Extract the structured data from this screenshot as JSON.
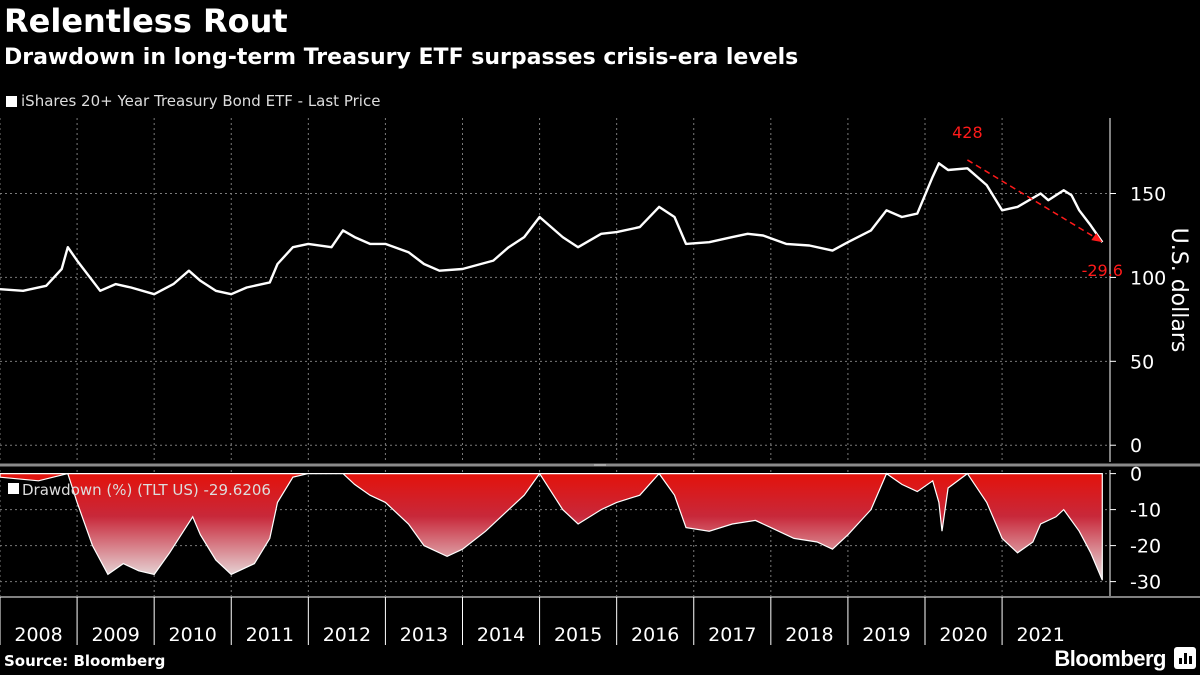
{
  "title": "Relentless Rout",
  "subtitle": "Drawdown in long-term Treasury ETF surpasses crisis-era levels",
  "source": "Source: Bloomberg",
  "brand": "Bloomberg",
  "colors": {
    "background": "#000000",
    "price_line": "#ffffff",
    "drawdown": "#e3120b",
    "annotation": "#ff1a1a",
    "grid": "#7a7a7a"
  },
  "chart_data": [
    {
      "type": "line",
      "legend": "iShares 20+ Year Treasury Bond ETF - Last Price",
      "ylabel": "U.S. dollars",
      "ylim": [
        -10,
        195
      ],
      "yticks": [
        0,
        50,
        100,
        150
      ],
      "grid": true,
      "legend_placement": "top-left",
      "axis_side": "right",
      "series": [
        {
          "name": "iShares 20+ Year Treasury Bond ETF - Last Price",
          "x": [
            2008.0,
            2008.3,
            2008.6,
            2008.8,
            2008.88,
            2009.0,
            2009.3,
            2009.5,
            2009.7,
            2010.0,
            2010.25,
            2010.45,
            2010.6,
            2010.8,
            2011.0,
            2011.2,
            2011.5,
            2011.6,
            2011.8,
            2012.0,
            2012.3,
            2012.45,
            2012.6,
            2012.8,
            2013.0,
            2013.3,
            2013.5,
            2013.7,
            2014.0,
            2014.4,
            2014.6,
            2014.8,
            2015.0,
            2015.3,
            2015.5,
            2015.8,
            2016.0,
            2016.3,
            2016.55,
            2016.75,
            2016.9,
            2017.2,
            2017.5,
            2017.7,
            2017.9,
            2018.2,
            2018.5,
            2018.8,
            2019.0,
            2019.3,
            2019.5,
            2019.7,
            2019.9,
            2020.1,
            2020.18,
            2020.3,
            2020.55,
            2020.8,
            2021.0,
            2021.2,
            2021.5,
            2021.6,
            2021.8,
            2021.9,
            2022.0,
            2022.15,
            2022.3
          ],
          "values": [
            93,
            92,
            95,
            105,
            118,
            110,
            92,
            96,
            94,
            90,
            96,
            104,
            98,
            92,
            90,
            94,
            97,
            108,
            118,
            120,
            118,
            128,
            124,
            120,
            120,
            115,
            108,
            104,
            105,
            110,
            118,
            124,
            136,
            124,
            118,
            126,
            127,
            130,
            142,
            136,
            120,
            121,
            124,
            126,
            125,
            120,
            119,
            116,
            121,
            128,
            140,
            136,
            138,
            160,
            168,
            164,
            165,
            155,
            140,
            142,
            150,
            146,
            152,
            149,
            140,
            131,
            121
          ]
        }
      ],
      "annotations": [
        {
          "text": "428",
          "x": 2020.55,
          "y": 170
        },
        {
          "text": "-29.6",
          "x": 2022.3,
          "y": 121
        }
      ]
    },
    {
      "type": "area",
      "legend": "Drawdown (%) (TLT US) -29.6206",
      "ylim": [
        -34,
        1
      ],
      "yticks": [
        0,
        -10,
        -20,
        -30
      ],
      "grid": true,
      "legend_placement": "top-left",
      "axis_side": "right",
      "series": [
        {
          "name": "Drawdown (%) (TLT US) -29.6206",
          "x": [
            2008.0,
            2008.5,
            2008.88,
            2009.0,
            2009.2,
            2009.4,
            2009.6,
            2009.8,
            2010.0,
            2010.2,
            2010.5,
            2010.6,
            2010.8,
            2011.0,
            2011.3,
            2011.5,
            2011.6,
            2011.8,
            2012.0,
            2012.45,
            2012.6,
            2012.8,
            2013.0,
            2013.3,
            2013.5,
            2013.8,
            2014.0,
            2014.3,
            2014.6,
            2014.8,
            2015.0,
            2015.3,
            2015.5,
            2015.8,
            2016.0,
            2016.3,
            2016.55,
            2016.75,
            2016.9,
            2017.2,
            2017.5,
            2017.8,
            2018.0,
            2018.3,
            2018.6,
            2018.8,
            2019.0,
            2019.3,
            2019.5,
            2019.7,
            2019.9,
            2020.1,
            2020.18,
            2020.22,
            2020.3,
            2020.55,
            2020.8,
            2021.0,
            2021.2,
            2021.4,
            2021.5,
            2021.7,
            2021.8,
            2022.0,
            2022.15,
            2022.3
          ],
          "values": [
            -1,
            -2,
            0,
            -8,
            -20,
            -28,
            -25,
            -27,
            -28,
            -22,
            -12,
            -17,
            -24,
            -28,
            -25,
            -18,
            -8,
            -1,
            0,
            0,
            -3,
            -6,
            -8,
            -14,
            -20,
            -23,
            -21,
            -16,
            -10,
            -6,
            0,
            -10,
            -14,
            -10,
            -8,
            -6,
            0,
            -6,
            -15,
            -16,
            -14,
            -13,
            -15,
            -18,
            -19,
            -21,
            -17,
            -10,
            0,
            -3,
            -5,
            -2,
            -8,
            -16,
            -4,
            0,
            -8,
            -18,
            -22,
            -19,
            -14,
            -12,
            -10,
            -16,
            -22,
            -29.6
          ]
        }
      ]
    }
  ],
  "x_axis": {
    "ticks": [
      "2008",
      "2009",
      "2010",
      "2011",
      "2012",
      "2013",
      "2014",
      "2015",
      "2016",
      "2017",
      "2018",
      "2019",
      "2020",
      "2021"
    ],
    "range": [
      2008.0,
      2022.4
    ]
  }
}
